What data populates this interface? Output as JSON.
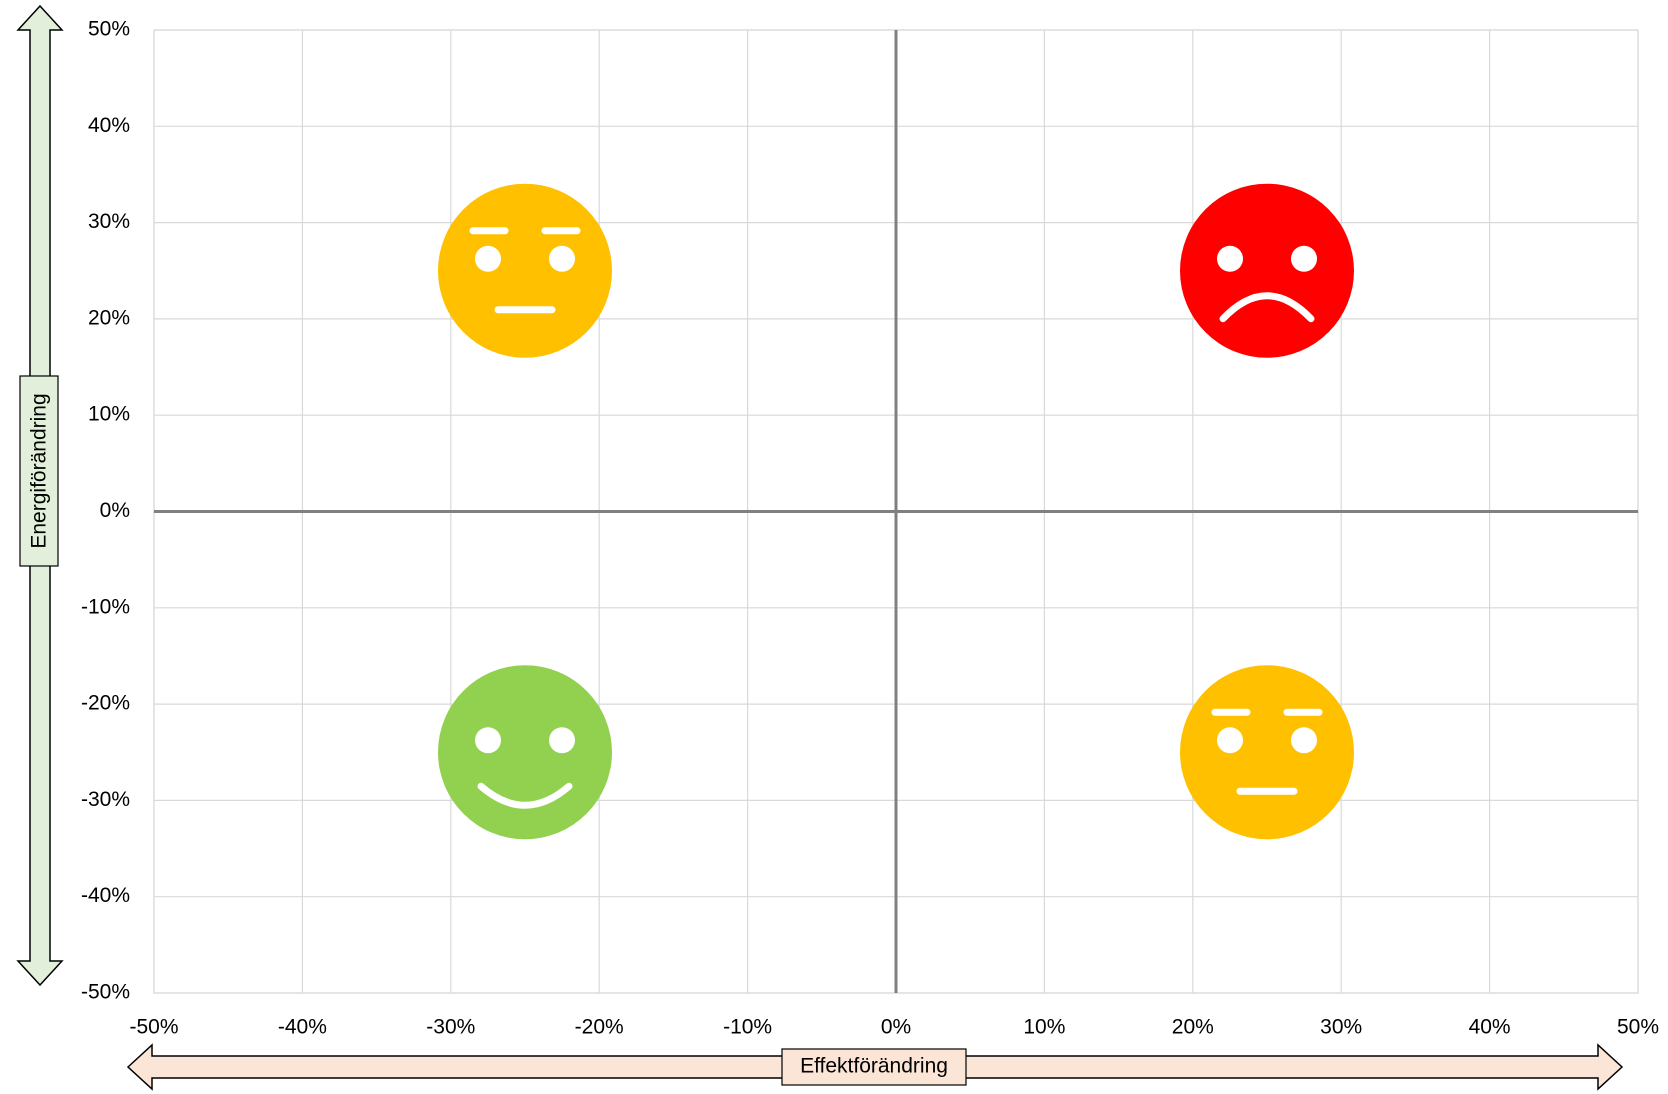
{
  "chart_data": {
    "type": "scatter",
    "x_label": "Effektförändring",
    "y_label": "Energiförändring",
    "x": [
      -25,
      25,
      -25,
      25
    ],
    "values": [
      25,
      25,
      -25,
      -25
    ],
    "colors": [
      "#ffc000",
      "#ff0000",
      "#92d050",
      "#ffc000"
    ],
    "markers": [
      "neutral",
      "sad",
      "happy",
      "neutral"
    ],
    "xlim": [
      -50,
      50
    ],
    "ylim": [
      -50,
      50
    ],
    "xticks": [
      {
        "value": -50,
        "label": "-50%"
      },
      {
        "value": -40,
        "label": "-40%"
      },
      {
        "value": -30,
        "label": "-30%"
      },
      {
        "value": -20,
        "label": "-20%"
      },
      {
        "value": -10,
        "label": "-10%"
      },
      {
        "value": 0,
        "label": "0%"
      },
      {
        "value": 10,
        "label": "10%"
      },
      {
        "value": 20,
        "label": "20%"
      },
      {
        "value": 30,
        "label": "30%"
      },
      {
        "value": 40,
        "label": "40%"
      },
      {
        "value": 50,
        "label": "50%"
      }
    ],
    "yticks": [
      {
        "value": -50,
        "label": "-50%"
      },
      {
        "value": -40,
        "label": "-40%"
      },
      {
        "value": -30,
        "label": "-30%"
      },
      {
        "value": -20,
        "label": "-20%"
      },
      {
        "value": -10,
        "label": "-10%"
      },
      {
        "value": 0,
        "label": "0%"
      },
      {
        "value": 10,
        "label": "10%"
      },
      {
        "value": 20,
        "label": "20%"
      },
      {
        "value": 30,
        "label": "30%"
      },
      {
        "value": 40,
        "label": "40%"
      },
      {
        "value": 50,
        "label": "50%"
      }
    ],
    "grid": true
  }
}
